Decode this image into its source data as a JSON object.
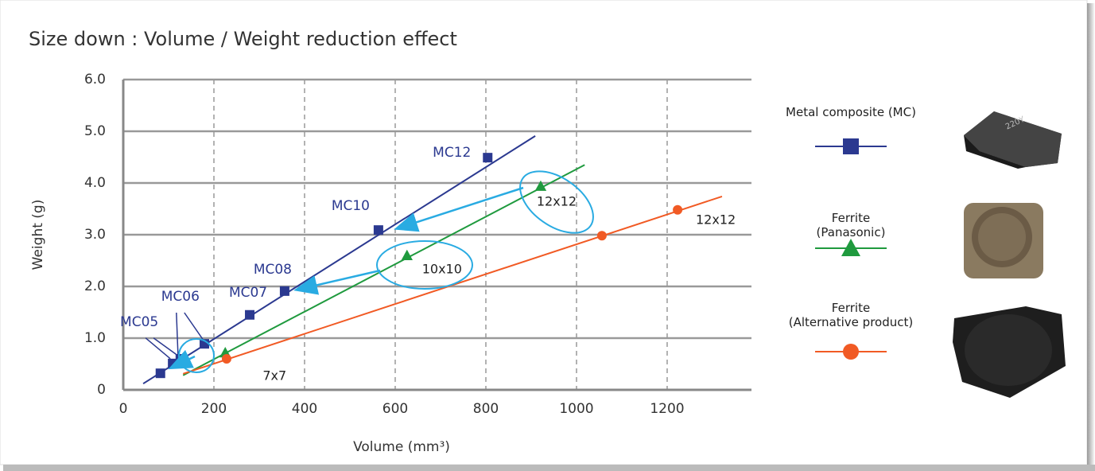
{
  "chart_data": {
    "type": "scatter",
    "title": "Size down : Volume / Weight reduction effect",
    "x_label": "Volume (mm³)",
    "y_label": "Weight (g)",
    "xlim": [
      0,
      1386
    ],
    "ylim": [
      0,
      6
    ],
    "xticks": [
      0,
      200,
      400,
      600,
      800,
      1000,
      1200
    ],
    "yticks": [
      0,
      {
        "value": 1,
        "label": "1.0"
      },
      {
        "value": 2,
        "label": "2.0"
      },
      {
        "value": 3,
        "label": "3.0"
      },
      {
        "value": 4,
        "label": "4.0"
      },
      {
        "value": 5,
        "label": "5.0"
      },
      {
        "value": 6,
        "label": "6.0"
      }
    ],
    "grid": true,
    "series": [
      {
        "name": "Metal composite (MC)",
        "color": "#2b3990",
        "marker": "square",
        "x": [
          82,
          109,
          126,
          179,
          279,
          356,
          563,
          804
        ],
        "values": [
          0.32,
          0.51,
          0.6,
          0.89,
          1.45,
          1.91,
          3.09,
          4.49
        ],
        "point_labels": [
          null,
          "MC05",
          "MC06",
          null,
          "MC07",
          "MC08",
          "MC10",
          "MC12"
        ],
        "trend": {
          "x": [
            44,
            909
          ],
          "values": [
            0.12,
            4.91
          ]
        }
      },
      {
        "name": "Ferrite\n(Panasonic)",
        "color": "#1f9a3e",
        "marker": "triangle",
        "x": [
          225,
          626,
          921
        ],
        "values": [
          0.72,
          2.6,
          3.94
        ],
        "point_labels": [
          "7x7",
          "10x10",
          "12x12"
        ],
        "trend": {
          "x": [
            132,
            1018
          ],
          "values": [
            0.28,
            4.35
          ]
        }
      },
      {
        "name": "Ferrite\n(Alternative product)",
        "color": "#f15a24",
        "marker": "circle",
        "x": [
          228,
          1056,
          1223
        ],
        "values": [
          0.6,
          2.98,
          3.48
        ],
        "point_labels": [
          null,
          null,
          "12x12"
        ],
        "trend": {
          "x": [
            132,
            1321
          ],
          "values": [
            0.31,
            3.74
          ]
        }
      }
    ]
  }
}
